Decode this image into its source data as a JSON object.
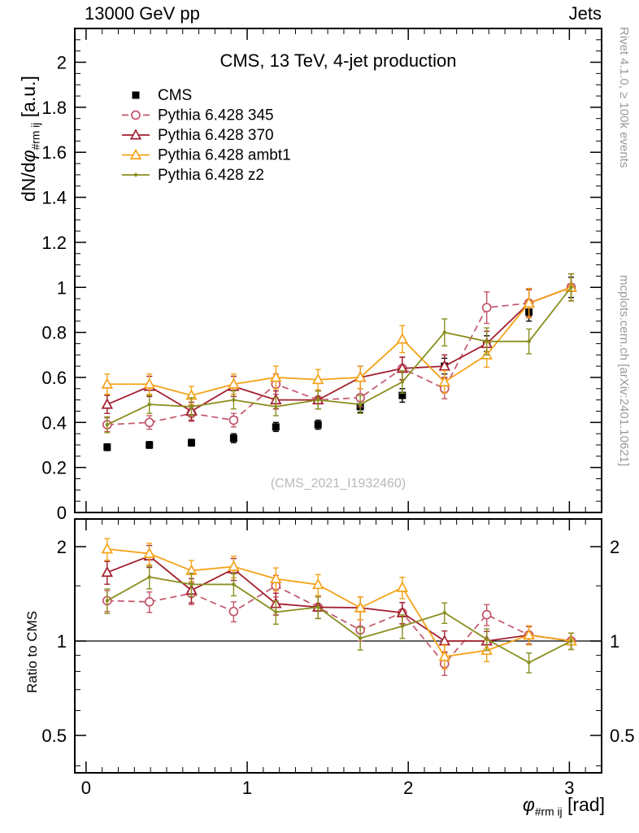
{
  "header": {
    "left_label": "13000 GeV pp",
    "right_label": "Jets"
  },
  "watermark": "(CMS_2021_I1932460)",
  "side_notes": {
    "top_right": "Rivet 4.1.0, ≥ 100k events",
    "bottom_right": "mcplots.cern.ch [arXiv:2401.10621]"
  },
  "chart_data": {
    "type": "line",
    "title": "CMS, 13 TeV, 4-jet production",
    "xlabel": {
      "symbol": "φ",
      "sub": "#rm ij",
      "unit": " [rad]"
    },
    "ylabel_main": {
      "prefix": "dN/d",
      "symbol": "φ",
      "sub": "#rm ij",
      "unit": " [a.u.]"
    },
    "ylabel_ratio": "Ratio to CMS",
    "xlim": [
      -0.07,
      3.2
    ],
    "ylim_main": [
      0,
      2.15
    ],
    "ylim_ratio": [
      0.38,
      2.45
    ],
    "ratio_scale": "log",
    "legend_position": "top-left",
    "grid": false,
    "x_ticks": {
      "major": [
        0,
        1,
        2,
        3
      ],
      "minor_step": 0.1,
      "minor_start": 0
    },
    "y_ticks_main": {
      "major": [
        0,
        0.2,
        0.4,
        0.6,
        0.8,
        1,
        1.2,
        1.4,
        1.6,
        1.8,
        2
      ],
      "minor_step": 0.05
    },
    "ratio_ticks": {
      "labeled": [
        0.5,
        1,
        2
      ],
      "minor": [
        0.4,
        0.6,
        0.7,
        0.8,
        0.9,
        1.5
      ]
    },
    "x": [
      0.131,
      0.393,
      0.654,
      0.916,
      1.178,
      1.44,
      1.702,
      1.963,
      2.225,
      2.487,
      2.749,
      3.011
    ],
    "series": [
      {
        "name": "CMS",
        "color": "#000000",
        "marker": "square-filled",
        "line": false,
        "values": [
          0.29,
          0.3,
          0.31,
          0.33,
          0.38,
          0.39,
          0.47,
          0.52,
          0.65,
          0.75,
          0.89,
          1.0
        ],
        "errors": [
          0.015,
          0.015,
          0.015,
          0.02,
          0.02,
          0.02,
          0.025,
          0.03,
          0.035,
          0.035,
          0.04,
          0.045
        ]
      },
      {
        "name": "Pythia 6.428 345",
        "color": "#c4556a",
        "marker": "circle-open",
        "dash": "8,5",
        "width": 1.7,
        "values": [
          0.39,
          0.4,
          0.44,
          0.41,
          0.57,
          0.5,
          0.51,
          0.64,
          0.55,
          0.91,
          0.93,
          1.0
        ],
        "errors": [
          0.03,
          0.03,
          0.035,
          0.03,
          0.045,
          0.04,
          0.04,
          0.05,
          0.045,
          0.07,
          0.065,
          0.06
        ]
      },
      {
        "name": "Pythia 6.428 370",
        "color": "#a21f2f",
        "marker": "triangle-open",
        "width": 1.8,
        "values": [
          0.48,
          0.56,
          0.45,
          0.56,
          0.5,
          0.5,
          0.6,
          0.64,
          0.65,
          0.75,
          0.93,
          1.0
        ],
        "errors": [
          0.04,
          0.045,
          0.04,
          0.045,
          0.04,
          0.04,
          0.05,
          0.05,
          0.05,
          0.055,
          0.06,
          0.06
        ]
      },
      {
        "name": "Pythia 6.428 ambt1",
        "color": "#f5a31a",
        "marker": "triangle-open",
        "width": 1.8,
        "values": [
          0.57,
          0.57,
          0.52,
          0.57,
          0.6,
          0.59,
          0.6,
          0.77,
          0.58,
          0.7,
          0.93,
          1.0
        ],
        "errors": [
          0.045,
          0.045,
          0.04,
          0.045,
          0.05,
          0.045,
          0.05,
          0.06,
          0.05,
          0.055,
          0.065,
          0.06
        ]
      },
      {
        "name": "Pythia 6.428 z2",
        "color": "#8a8f1f",
        "marker": "dot",
        "width": 1.8,
        "values": [
          0.39,
          0.48,
          0.47,
          0.5,
          0.47,
          0.5,
          0.48,
          0.58,
          0.8,
          0.76,
          0.76,
          1.0
        ],
        "errors": [
          0.035,
          0.04,
          0.04,
          0.04,
          0.04,
          0.04,
          0.04,
          0.05,
          0.06,
          0.06,
          0.055,
          0.06
        ]
      }
    ]
  }
}
